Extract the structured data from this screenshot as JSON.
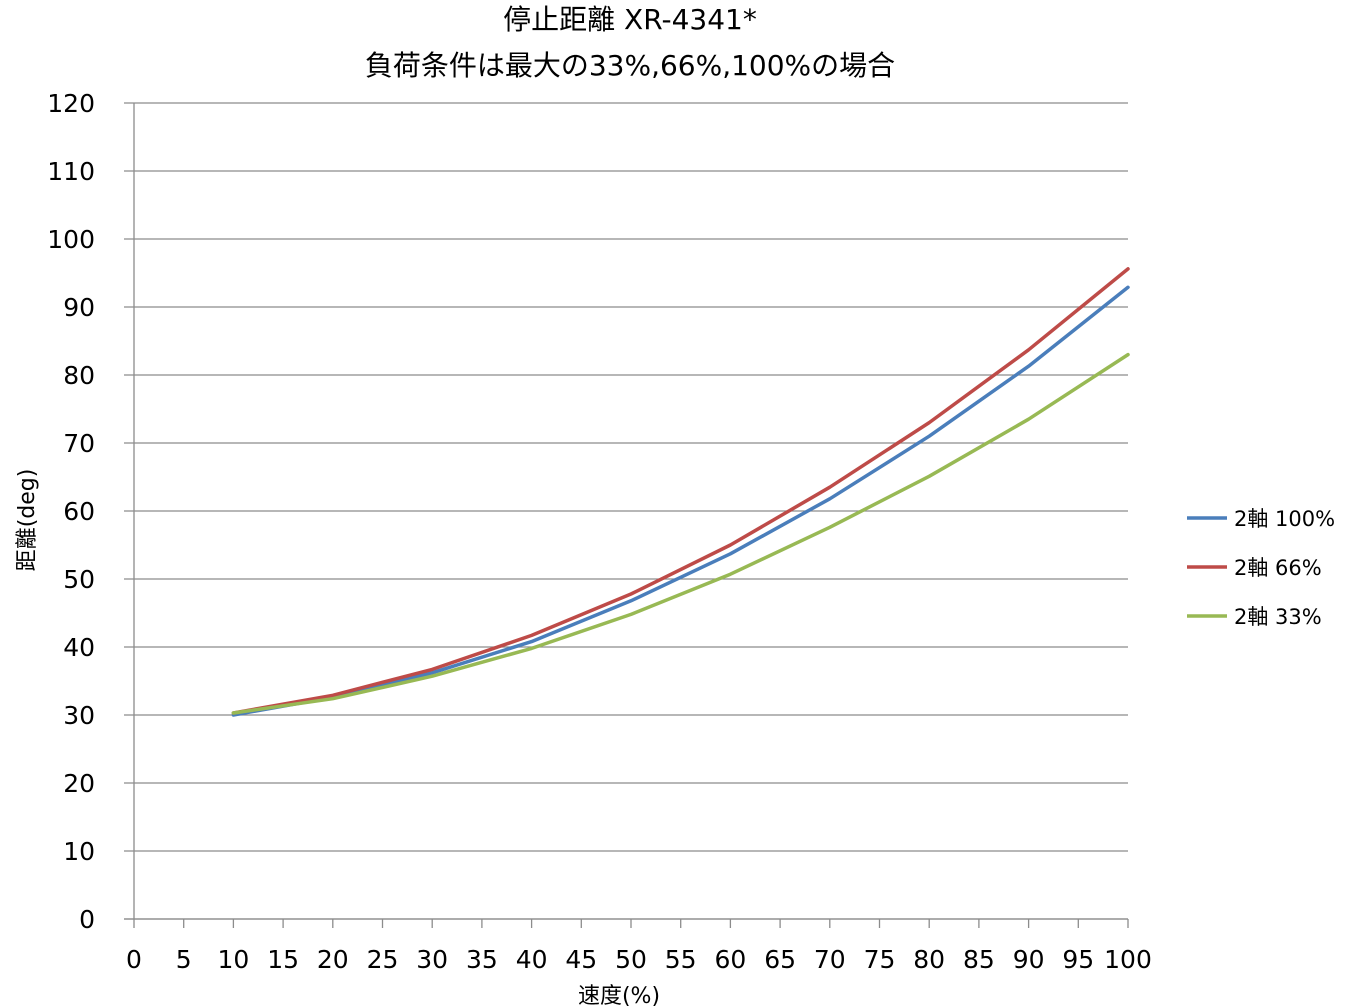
{
  "chart_data": {
    "type": "line",
    "title": "停止距離 XR-4341*",
    "subtitle": "負荷条件は最大の33%,66%,100%の場合",
    "xlabel": "速度(%)",
    "ylabel": "距離(deg)",
    "xlim": [
      0,
      100
    ],
    "ylim": [
      0,
      120
    ],
    "x_ticks": [
      "0",
      "5",
      "10",
      "15",
      "20",
      "25",
      "30",
      "35",
      "40",
      "45",
      "50",
      "55",
      "60",
      "65",
      "70",
      "75",
      "80",
      "85",
      "90",
      "95",
      "100"
    ],
    "y_ticks": [
      "0",
      "10",
      "20",
      "30",
      "40",
      "50",
      "60",
      "70",
      "80",
      "90",
      "100",
      "110",
      "120"
    ],
    "x": [
      10,
      20,
      30,
      40,
      50,
      60,
      70,
      80,
      90,
      100
    ],
    "grid": "horizontal",
    "legend_position": "right",
    "series": [
      {
        "name": "2軸 100%",
        "color": "#4a7ebb",
        "values": [
          30.0,
          32.6,
          36.2,
          40.8,
          46.8,
          53.7,
          61.8,
          71.0,
          81.3,
          92.9
        ]
      },
      {
        "name": "2軸 66%",
        "color": "#be4b48",
        "values": [
          30.3,
          32.9,
          36.7,
          41.7,
          47.8,
          55.0,
          63.5,
          73.0,
          83.7,
          95.6
        ]
      },
      {
        "name": "2軸 33%",
        "color": "#98b954",
        "values": [
          30.3,
          32.4,
          35.7,
          39.8,
          44.8,
          50.7,
          57.6,
          65.1,
          73.5,
          83.0
        ]
      }
    ]
  }
}
